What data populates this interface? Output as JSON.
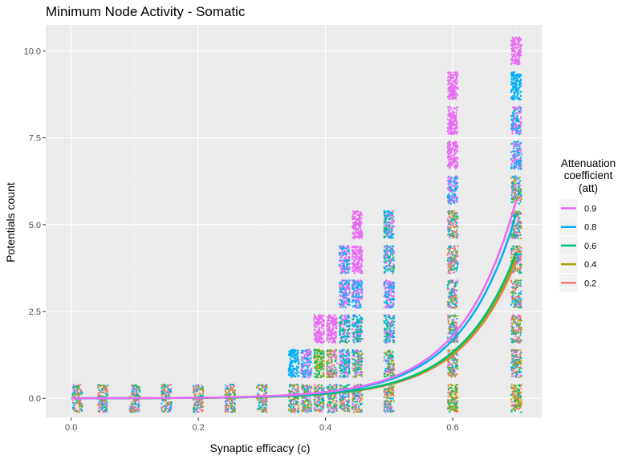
{
  "chart_data": {
    "type": "scatter",
    "title": "Minimum Node Activity - Somatic",
    "xlabel": "Synaptic efficacy (c)",
    "ylabel": "Potentials count",
    "xlim": [
      -0.04,
      0.74
    ],
    "ylim": [
      -0.55,
      10.75
    ],
    "x_ticks": [
      0.0,
      0.2,
      0.4,
      0.6
    ],
    "x_tick_labels": [
      "0.0",
      "0.2",
      "0.4",
      "0.6"
    ],
    "y_ticks": [
      0.0,
      2.5,
      5.0,
      7.5,
      10.0
    ],
    "y_tick_labels": [
      "0.0",
      "2.5",
      "5.0",
      "7.5",
      "10.0"
    ],
    "grid": true,
    "background": "#ebebeb",
    "legend": {
      "title": "Attenuation coefficient (att)",
      "title_lines": [
        "Attenuation",
        "coefficient",
        "(att)"
      ],
      "placement": "right"
    },
    "series": [
      {
        "name": "0.9",
        "color": "#e76bf3",
        "fit_end": 5.7
      },
      {
        "name": "0.8",
        "color": "#00b0f6",
        "fit_end": 5.3
      },
      {
        "name": "0.6",
        "color": "#00bf7d",
        "fit_end": 4.2
      },
      {
        "name": "0.4",
        "color": "#a3a500",
        "fit_end": 4.05
      },
      {
        "name": "0.2",
        "color": "#f8766d",
        "fit_end": 3.95
      }
    ],
    "jitter_groups": [
      {
        "x": 0.01,
        "y": 0,
        "colors": [
          "0.9",
          "0.8",
          "0.6",
          "0.4",
          "0.2"
        ]
      },
      {
        "x": 0.05,
        "y": 0,
        "colors": [
          "0.9",
          "0.8",
          "0.6",
          "0.4",
          "0.2"
        ]
      },
      {
        "x": 0.1,
        "y": 0,
        "colors": [
          "0.9",
          "0.8",
          "0.6",
          "0.4",
          "0.2"
        ]
      },
      {
        "x": 0.15,
        "y": 0,
        "colors": [
          "0.9",
          "0.8",
          "0.6",
          "0.4",
          "0.2"
        ]
      },
      {
        "x": 0.2,
        "y": 0,
        "colors": [
          "0.9",
          "0.8",
          "0.6",
          "0.4",
          "0.2"
        ]
      },
      {
        "x": 0.25,
        "y": 0,
        "colors": [
          "0.9",
          "0.8",
          "0.6",
          "0.4",
          "0.2"
        ]
      },
      {
        "x": 0.3,
        "y": 0,
        "colors": [
          "0.9",
          "0.8",
          "0.6",
          "0.4",
          "0.2"
        ]
      },
      {
        "x": 0.35,
        "y": 0,
        "colors": [
          "0.9",
          "0.8",
          "0.6",
          "0.4",
          "0.2"
        ]
      },
      {
        "x": 0.35,
        "y": 1,
        "colors": [
          "0.8"
        ]
      },
      {
        "x": 0.37,
        "y": 0,
        "colors": [
          "0.9",
          "0.8",
          "0.6",
          "0.4",
          "0.2"
        ]
      },
      {
        "x": 0.37,
        "y": 1,
        "colors": [
          "0.8",
          "0.9"
        ]
      },
      {
        "x": 0.39,
        "y": 0,
        "colors": [
          "0.9",
          "0.8",
          "0.6",
          "0.4",
          "0.2"
        ]
      },
      {
        "x": 0.39,
        "y": 1,
        "colors": [
          "0.4",
          "0.6"
        ]
      },
      {
        "x": 0.39,
        "y": 2,
        "colors": [
          "0.9"
        ]
      },
      {
        "x": 0.41,
        "y": 0,
        "colors": [
          "0.9",
          "0.8",
          "0.6",
          "0.4",
          "0.2"
        ]
      },
      {
        "x": 0.41,
        "y": 1,
        "colors": [
          "0.9",
          "0.6",
          "0.4",
          "0.2"
        ]
      },
      {
        "x": 0.41,
        "y": 2,
        "colors": [
          "0.9"
        ]
      },
      {
        "x": 0.43,
        "y": 0,
        "colors": [
          "0.9",
          "0.8",
          "0.6",
          "0.4",
          "0.2"
        ]
      },
      {
        "x": 0.43,
        "y": 1,
        "colors": [
          "0.9",
          "0.8",
          "0.6"
        ]
      },
      {
        "x": 0.43,
        "y": 2,
        "colors": [
          "0.9",
          "0.6",
          "0.8"
        ]
      },
      {
        "x": 0.43,
        "y": 3,
        "colors": [
          "0.8",
          "0.9"
        ]
      },
      {
        "x": 0.43,
        "y": 4,
        "colors": [
          "0.9",
          "0.8"
        ]
      },
      {
        "x": 0.45,
        "y": 0,
        "colors": [
          "0.9",
          "0.8",
          "0.6",
          "0.4",
          "0.2"
        ]
      },
      {
        "x": 0.45,
        "y": 1,
        "colors": [
          "0.9",
          "0.8",
          "0.6",
          "0.4"
        ]
      },
      {
        "x": 0.45,
        "y": 2,
        "colors": [
          "0.6",
          "0.8",
          "0.9"
        ]
      },
      {
        "x": 0.45,
        "y": 3,
        "colors": [
          "0.8",
          "0.9"
        ]
      },
      {
        "x": 0.45,
        "y": 4,
        "colors": [
          "0.9"
        ]
      },
      {
        "x": 0.45,
        "y": 5,
        "colors": [
          "0.9"
        ]
      },
      {
        "x": 0.5,
        "y": 0,
        "colors": [
          "0.4",
          "0.2",
          "0.6",
          "0.8",
          "0.9"
        ]
      },
      {
        "x": 0.5,
        "y": 1,
        "colors": [
          "0.2",
          "0.4",
          "0.6",
          "0.8",
          "0.9"
        ]
      },
      {
        "x": 0.5,
        "y": 2,
        "colors": [
          "0.6",
          "0.8",
          "0.9"
        ]
      },
      {
        "x": 0.5,
        "y": 3,
        "colors": [
          "0.8",
          "0.9"
        ]
      },
      {
        "x": 0.5,
        "y": 4,
        "colors": [
          "0.6",
          "0.8",
          "0.9"
        ]
      },
      {
        "x": 0.5,
        "y": 5,
        "colors": [
          "0.9",
          "0.6",
          "0.8"
        ]
      },
      {
        "x": 0.6,
        "y": 0,
        "colors": [
          "0.4",
          "0.2",
          "0.6"
        ]
      },
      {
        "x": 0.6,
        "y": 1,
        "colors": [
          "0.2",
          "0.4",
          "0.6",
          "0.8",
          "0.9"
        ]
      },
      {
        "x": 0.6,
        "y": 2,
        "colors": [
          "0.2",
          "0.4",
          "0.6",
          "0.8",
          "0.9"
        ]
      },
      {
        "x": 0.6,
        "y": 3,
        "colors": [
          "0.2",
          "0.4",
          "0.6",
          "0.8",
          "0.9"
        ]
      },
      {
        "x": 0.6,
        "y": 4,
        "colors": [
          "0.2",
          "0.4",
          "0.6",
          "0.8",
          "0.9"
        ]
      },
      {
        "x": 0.6,
        "y": 5,
        "colors": [
          "0.2",
          "0.4",
          "0.6",
          "0.8",
          "0.9"
        ]
      },
      {
        "x": 0.6,
        "y": 6,
        "colors": [
          "0.8",
          "0.9"
        ]
      },
      {
        "x": 0.6,
        "y": 7,
        "colors": [
          "0.9"
        ]
      },
      {
        "x": 0.6,
        "y": 8,
        "colors": [
          "0.9"
        ]
      },
      {
        "x": 0.6,
        "y": 9,
        "colors": [
          "0.9"
        ]
      },
      {
        "x": 0.7,
        "y": 0,
        "colors": [
          "0.2",
          "0.6",
          "0.4"
        ]
      },
      {
        "x": 0.7,
        "y": 1,
        "colors": [
          "0.2",
          "0.4",
          "0.6",
          "0.8",
          "0.9"
        ]
      },
      {
        "x": 0.7,
        "y": 2,
        "colors": [
          "0.2",
          "0.4",
          "0.6",
          "0.8",
          "0.9"
        ]
      },
      {
        "x": 0.7,
        "y": 3,
        "colors": [
          "0.2",
          "0.4",
          "0.6",
          "0.8",
          "0.9"
        ]
      },
      {
        "x": 0.7,
        "y": 4,
        "colors": [
          "0.2",
          "0.4",
          "0.6",
          "0.8",
          "0.9"
        ]
      },
      {
        "x": 0.7,
        "y": 5,
        "colors": [
          "0.2",
          "0.4",
          "0.6",
          "0.8",
          "0.9"
        ]
      },
      {
        "x": 0.7,
        "y": 6,
        "colors": [
          "0.4",
          "0.6",
          "0.8",
          "0.9"
        ]
      },
      {
        "x": 0.7,
        "y": 7,
        "colors": [
          "0.8",
          "0.9"
        ]
      },
      {
        "x": 0.7,
        "y": 8,
        "colors": [
          "0.9",
          "0.8"
        ]
      },
      {
        "x": 0.7,
        "y": 9,
        "colors": [
          "0.8"
        ]
      },
      {
        "x": 0.7,
        "y": 10,
        "colors": [
          "0.9"
        ]
      }
    ]
  }
}
